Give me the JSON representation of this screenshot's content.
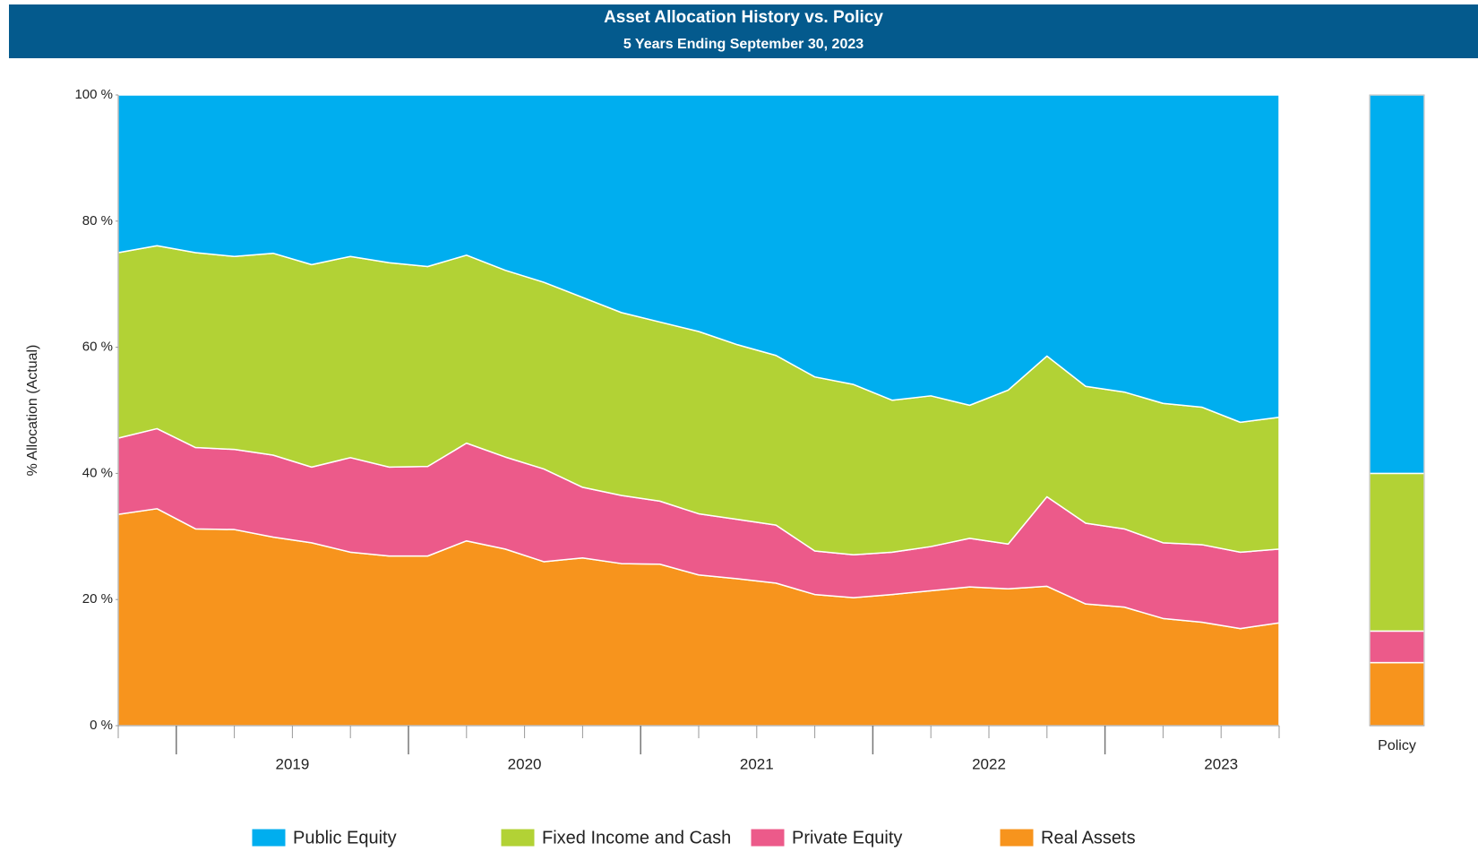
{
  "chart_data": {
    "type": "stacked_area",
    "title": "Asset Allocation History vs. Policy",
    "subtitle": "5 Years Ending September 30, 2023",
    "y_label": "% Allocation (Actual)",
    "x": [
      2018.75,
      2018.917,
      2019.083,
      2019.25,
      2019.417,
      2019.583,
      2019.75,
      2019.917,
      2020.083,
      2020.25,
      2020.417,
      2020.583,
      2020.75,
      2020.917,
      2021.083,
      2021.25,
      2021.417,
      2021.583,
      2021.75,
      2021.917,
      2022.083,
      2022.25,
      2022.417,
      2022.583,
      2022.75,
      2022.917,
      2023.083,
      2023.25,
      2023.417,
      2023.583,
      2023.75
    ],
    "xlim": [
      2018.75,
      2023.75
    ],
    "xticks": [
      {
        "value": 2019.5,
        "label": "2019"
      },
      {
        "value": 2020.5,
        "label": "2020"
      },
      {
        "value": 2021.5,
        "label": "2021"
      },
      {
        "value": 2022.5,
        "label": "2022"
      },
      {
        "value": 2023.5,
        "label": "2023"
      }
    ],
    "x_major_ticks": [
      2019,
      2020,
      2021,
      2022,
      2023
    ],
    "x_minor_ticks": [
      2018.75,
      2019.25,
      2019.5,
      2019.75,
      2020.25,
      2020.5,
      2020.75,
      2021.25,
      2021.5,
      2021.75,
      2022.25,
      2022.5,
      2022.75,
      2023.25,
      2023.5,
      2023.75
    ],
    "ylim": [
      0,
      100
    ],
    "yticks": [
      {
        "value": 0,
        "label": "0 %"
      },
      {
        "value": 20,
        "label": "20 %"
      },
      {
        "value": 40,
        "label": "40 %"
      },
      {
        "value": 60,
        "label": "60 %"
      },
      {
        "value": 80,
        "label": "80 %"
      },
      {
        "value": 100,
        "label": "100 %"
      }
    ],
    "grid": false,
    "legend": "bottom",
    "policy_label": "Policy",
    "series": [
      {
        "name": "Public Equity",
        "color": "#00aeef",
        "policy": 60,
        "values": [
          25.0,
          23.9,
          25.0,
          25.6,
          25.1,
          26.9,
          25.6,
          26.6,
          27.2,
          25.4,
          27.8,
          29.7,
          32.1,
          34.5,
          36.0,
          37.5,
          39.6,
          41.3,
          44.7,
          45.9,
          48.4,
          47.7,
          49.2,
          46.8,
          41.4,
          46.2,
          47.1,
          48.9,
          49.5,
          51.9,
          51.1
        ]
      },
      {
        "name": "Fixed Income and Cash",
        "color": "#b2d235",
        "policy": 25,
        "values": [
          29.4,
          29.0,
          30.9,
          30.6,
          32.0,
          32.1,
          31.9,
          32.4,
          31.7,
          29.8,
          29.6,
          29.6,
          30.1,
          29.0,
          28.4,
          28.9,
          27.7,
          26.9,
          27.6,
          27.0,
          24.1,
          23.9,
          21.1,
          24.4,
          22.3,
          21.7,
          21.7,
          22.1,
          21.8,
          20.6,
          20.9
        ]
      },
      {
        "name": "Private Equity",
        "color": "#ec5a8a",
        "policy": 5,
        "values": [
          12.1,
          12.7,
          12.9,
          12.7,
          13.0,
          12.0,
          15.0,
          14.1,
          14.2,
          15.5,
          14.6,
          14.7,
          11.2,
          10.8,
          10.0,
          9.7,
          9.4,
          9.2,
          6.9,
          6.8,
          6.7,
          7.0,
          7.7,
          7.1,
          14.2,
          12.8,
          12.4,
          12.0,
          12.3,
          12.1,
          11.7
        ]
      },
      {
        "name": "Real Assets",
        "color": "#f7941d",
        "policy": 10,
        "values": [
          33.5,
          34.4,
          31.2,
          31.1,
          29.9,
          29.0,
          27.5,
          26.9,
          26.9,
          29.3,
          28.0,
          26.0,
          26.6,
          25.7,
          25.6,
          23.9,
          23.3,
          22.6,
          20.8,
          20.3,
          20.8,
          21.4,
          22.0,
          21.7,
          22.1,
          19.3,
          18.8,
          17.0,
          16.4,
          15.4,
          16.3
        ]
      }
    ]
  }
}
